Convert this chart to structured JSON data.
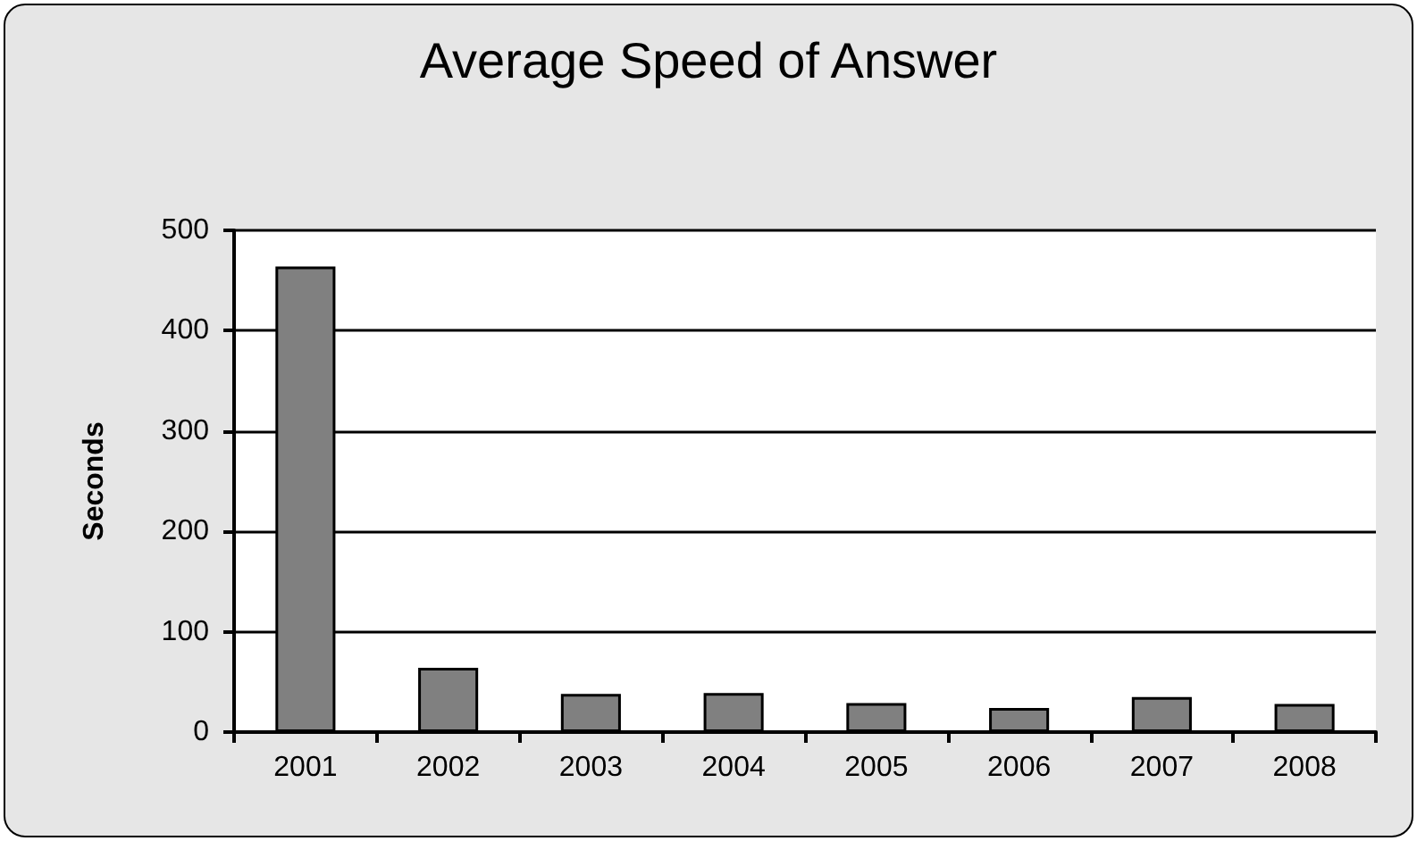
{
  "chart_data": {
    "type": "bar",
    "title": "Average Speed of Answer",
    "ylabel": "Seconds",
    "categories": [
      "2001",
      "2002",
      "2003",
      "2004",
      "2005",
      "2006",
      "2007",
      "2008"
    ],
    "values": [
      464,
      64,
      38,
      39,
      29,
      24,
      35,
      28
    ],
    "color": "#808080",
    "ylim": [
      0,
      500
    ],
    "yticks": [
      0,
      100,
      200,
      300,
      400,
      500
    ],
    "grid": "y"
  }
}
